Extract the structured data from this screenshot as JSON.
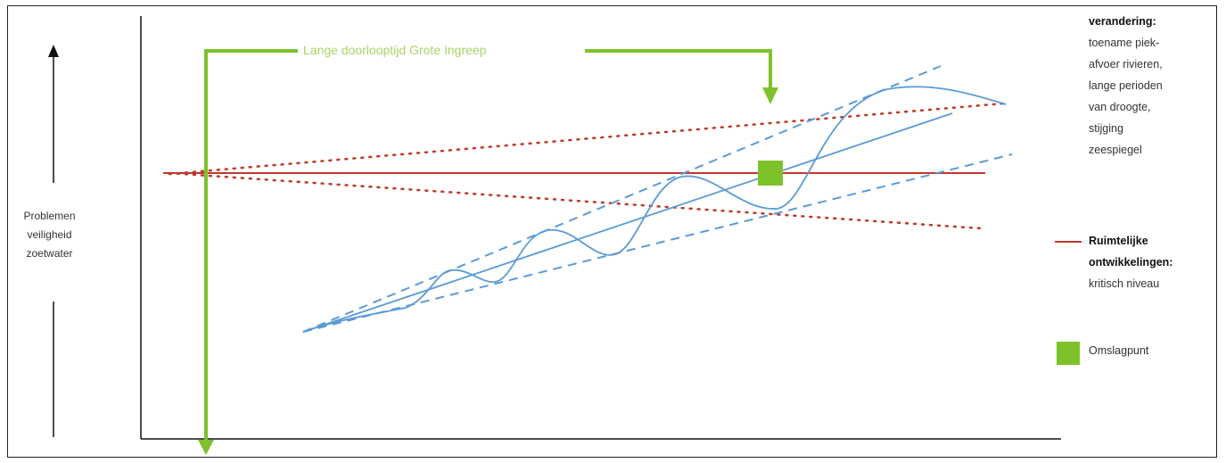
{
  "y_axis_label": [
    "Problemen",
    "veiligheid",
    "zoetwater"
  ],
  "top_label": "Lange doorlooptijd Grote Ingreep",
  "legend_top": {
    "title": "verandering:",
    "lines": [
      "toename piek-",
      "afvoer rivieren,",
      "lange perioden",
      "van droogte,",
      "stijging",
      "zeespiegel"
    ]
  },
  "legend_red": {
    "title": [
      "Ruimtelijke",
      "ontwikkelingen:"
    ],
    "lines": [
      "kritisch niveau"
    ]
  },
  "legend_green": "Omslagpunt",
  "colors": {
    "green": "#7dc22b",
    "green_light": "#a8d46a",
    "red": "#c0392b",
    "blue": "#5b9bd5",
    "axis": "#111111"
  }
}
